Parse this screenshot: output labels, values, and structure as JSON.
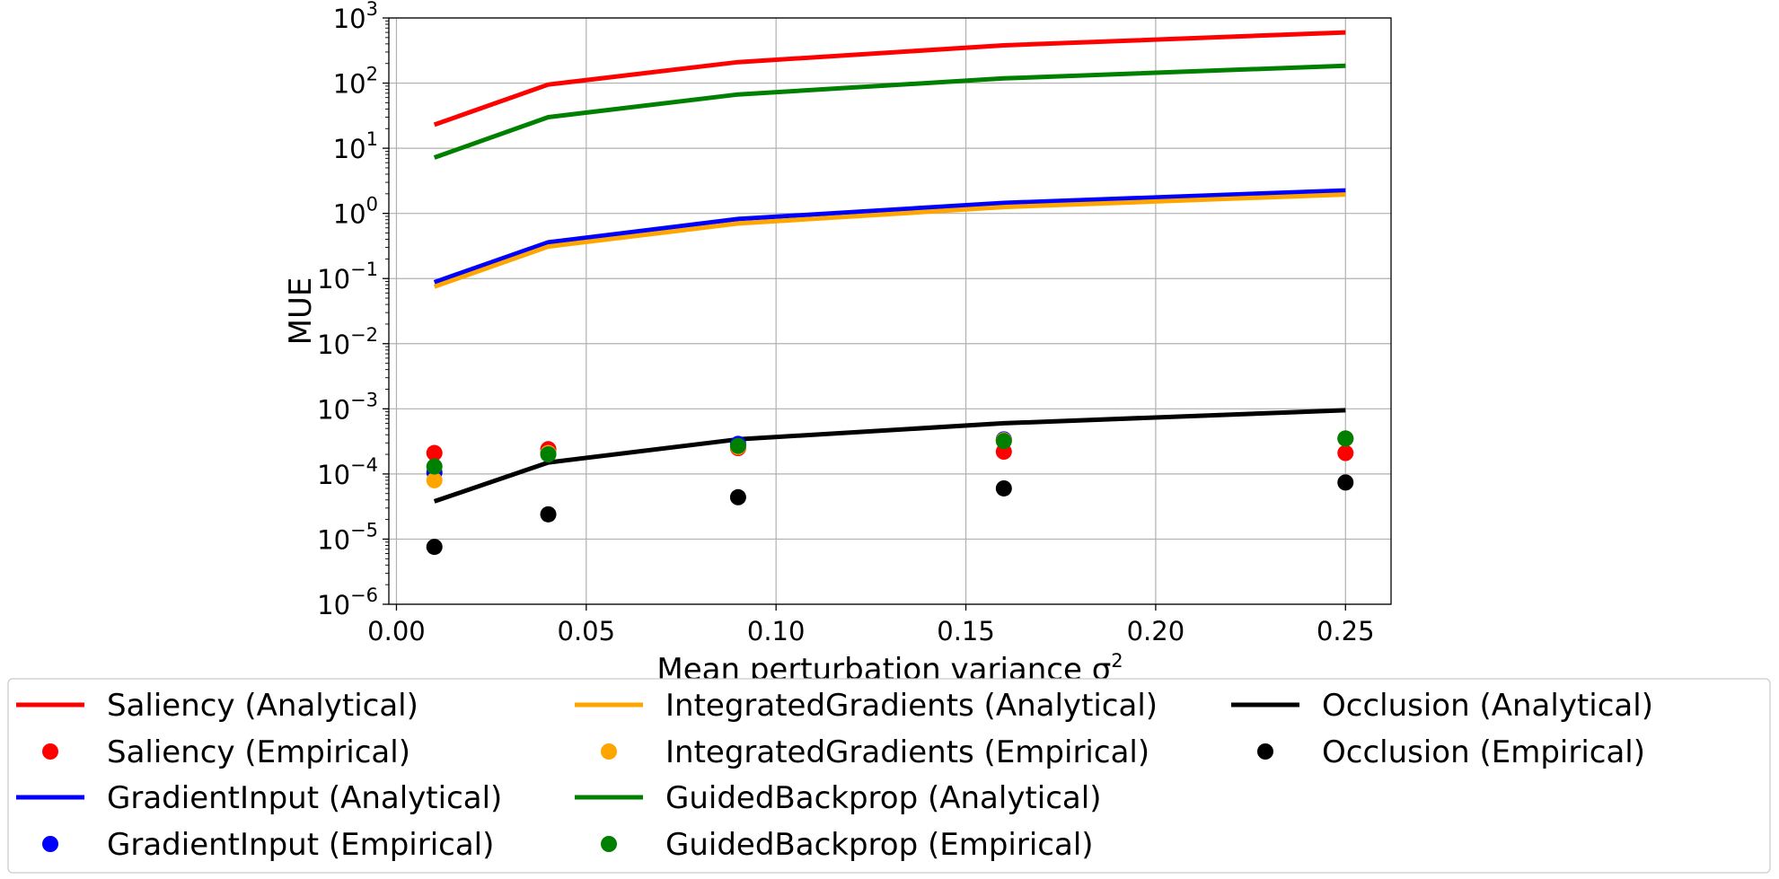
{
  "chart_data": {
    "type": "line",
    "xlabel": "Mean perturbation variance σ",
    "xlabel_superscript": "2",
    "ylabel": "MUE",
    "x_scale": "linear",
    "y_scale": "log",
    "xlim": [
      -0.002,
      0.262
    ],
    "ylim": [
      1e-06,
      1000
    ],
    "x_ticks": [
      0.0,
      0.05,
      0.1,
      0.15,
      0.2,
      0.25
    ],
    "x_tick_labels": [
      "0.00",
      "0.05",
      "0.10",
      "0.15",
      "0.20",
      "0.25"
    ],
    "y_tick_exponents": [
      "-6",
      "-5",
      "-4",
      "-3",
      "-2",
      "-1",
      "0",
      "1",
      "2",
      "3"
    ],
    "y_tick_base": "10",
    "grid": true,
    "legend_position": "below",
    "x": [
      0.01,
      0.04,
      0.09,
      0.16,
      0.25
    ],
    "series": [
      {
        "name": "Saliency (Analytical)",
        "kind": "line",
        "color": "#ff0000",
        "values": [
          23,
          95,
          210,
          380,
          600
        ]
      },
      {
        "name": "Saliency (Empirical)",
        "kind": "scatter",
        "color": "#ff0000",
        "values": [
          0.00021,
          0.00024,
          0.00025,
          0.00022,
          0.00021
        ]
      },
      {
        "name": "GradientInput (Analytical)",
        "kind": "line",
        "color": "#0000ff",
        "values": [
          0.088,
          0.36,
          0.82,
          1.45,
          2.25
        ]
      },
      {
        "name": "GradientInput (Empirical)",
        "kind": "scatter",
        "color": "#0000ff",
        "values": [
          0.000105,
          0.00021,
          0.00029,
          0.00034,
          0.00035
        ]
      },
      {
        "name": "IntegratedGradients (Analytical)",
        "kind": "line",
        "color": "#ffa500",
        "values": [
          0.075,
          0.31,
          0.7,
          1.25,
          1.95
        ]
      },
      {
        "name": "IntegratedGradients (Empirical)",
        "kind": "scatter",
        "color": "#ffa500",
        "values": [
          8e-05,
          0.00021,
          0.00026,
          0.00033,
          0.00035
        ]
      },
      {
        "name": "GuidedBackprop (Analytical)",
        "kind": "line",
        "color": "#008000",
        "values": [
          7.2,
          30,
          67,
          118,
          185
        ]
      },
      {
        "name": "GuidedBackprop (Empirical)",
        "kind": "scatter",
        "color": "#008000",
        "values": [
          0.00013,
          0.0002,
          0.00027,
          0.00032,
          0.00035
        ]
      },
      {
        "name": "Occlusion (Analytical)",
        "kind": "line",
        "color": "#000000",
        "values": [
          3.8e-05,
          0.00015,
          0.00034,
          0.0006,
          0.00095
        ]
      },
      {
        "name": "Occlusion (Empirical)",
        "kind": "scatter",
        "color": "#000000",
        "values": [
          7.6e-06,
          2.4e-05,
          4.4e-05,
          6e-05,
          7.4e-05
        ]
      }
    ]
  }
}
